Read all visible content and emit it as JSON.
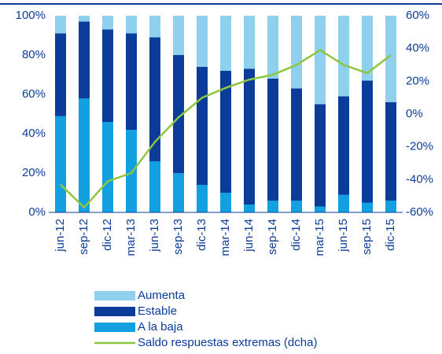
{
  "chart_data": {
    "type": "bar",
    "categories": [
      "jun-12",
      "sep-12",
      "dic-12",
      "mar-13",
      "jun-13",
      "sep-13",
      "dic-13",
      "mar-14",
      "jun-14",
      "sep-14",
      "dic-14",
      "mar-15",
      "jun-15",
      "sep-15",
      "dic-15"
    ],
    "series": [
      {
        "name": "A la baja",
        "color": "#12a0e0",
        "values": [
          49,
          58,
          46,
          42,
          26,
          20,
          14,
          10,
          4,
          6,
          6,
          3,
          9,
          5,
          6
        ]
      },
      {
        "name": "Estable",
        "color": "#0b3c9a",
        "values": [
          42,
          39,
          47,
          49,
          63,
          60,
          60,
          62,
          69,
          62,
          57,
          52,
          50,
          62,
          50
        ]
      },
      {
        "name": "Aumenta",
        "color": "#8fd0ef",
        "values": [
          9,
          3,
          7,
          9,
          11,
          20,
          26,
          28,
          27,
          32,
          37,
          45,
          41,
          33,
          44
        ]
      },
      {
        "name": "Saldo respuestas extremas (dcha)",
        "color": "#8dc63f",
        "type": "line",
        "axis": "y2",
        "values": [
          -43,
          -57,
          -41,
          -36,
          -17,
          -2,
          10,
          16,
          21,
          24,
          30,
          39,
          30,
          25,
          36
        ]
      }
    ],
    "ylim": [
      0,
      100
    ],
    "yticks": [
      {
        "value": 0,
        "label": "0%"
      },
      {
        "value": 20,
        "label": "20%"
      },
      {
        "value": 40,
        "label": "40%"
      },
      {
        "value": 60,
        "label": "60%"
      },
      {
        "value": 80,
        "label": "80%"
      },
      {
        "value": 100,
        "label": "100%"
      }
    ],
    "y2lim": [
      -60,
      60
    ],
    "y2ticks": [
      {
        "value": -60,
        "label": "-60%"
      },
      {
        "value": -40,
        "label": "-40%"
      },
      {
        "value": -20,
        "label": "-20%"
      },
      {
        "value": 0,
        "label": "0%"
      },
      {
        "value": 20,
        "label": "20%"
      },
      {
        "value": 40,
        "label": "40%"
      },
      {
        "value": 60,
        "label": "60%"
      }
    ],
    "grid": false
  }
}
